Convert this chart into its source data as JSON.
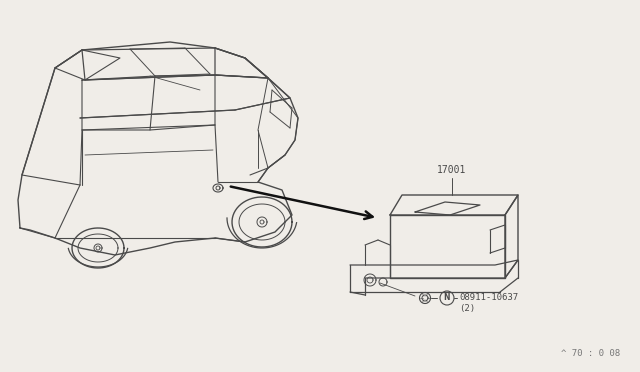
{
  "bg_color": "#f0ede8",
  "line_color": "#4a4a4a",
  "arrow_color": "#111111",
  "label_17001": "17001",
  "label_bolt": "08911-10637",
  "label_bolt_qty": "(2)",
  "label_n": "N",
  "watermark": "^ 70 : 0 08",
  "fig_width": 6.4,
  "fig_height": 3.72,
  "dpi": 100
}
